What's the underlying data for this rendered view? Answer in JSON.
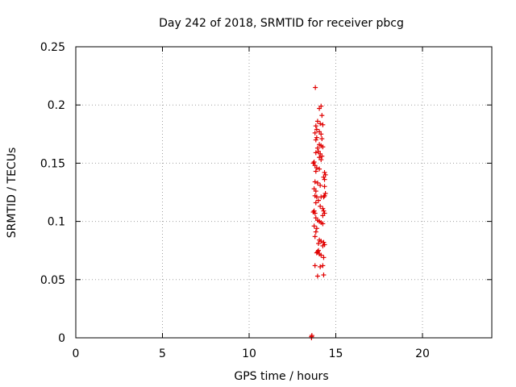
{
  "chart_data": {
    "type": "scatter",
    "title": "Day 242 of 2018, SRMTID for receiver pbcg",
    "xlabel": "GPS time / hours",
    "ylabel": "SRMTID / TECUs",
    "xlim": [
      0,
      24
    ],
    "ylim": [
      0,
      0.25
    ],
    "xticks": [
      0,
      5,
      10,
      15,
      20
    ],
    "xtick_labels": [
      "0",
      "5",
      "10",
      "15",
      "20"
    ],
    "yticks": [
      0,
      0.05,
      0.1,
      0.15,
      0.2,
      0.25
    ],
    "ytick_labels": [
      "0",
      "0.05",
      "0.1",
      "0.15",
      "0.2",
      "0.25"
    ],
    "grid": true,
    "marker": "plus",
    "color": "#e00000",
    "points": [
      [
        13.6,
        0.0
      ],
      [
        13.6,
        0.001
      ],
      [
        13.62,
        0.002
      ],
      [
        13.82,
        0.215
      ],
      [
        14.15,
        0.199
      ],
      [
        14.05,
        0.197
      ],
      [
        14.2,
        0.191
      ],
      [
        13.95,
        0.186
      ],
      [
        14.1,
        0.184
      ],
      [
        13.85,
        0.182
      ],
      [
        14.25,
        0.183
      ],
      [
        13.9,
        0.179
      ],
      [
        14.05,
        0.177
      ],
      [
        13.8,
        0.176
      ],
      [
        14.15,
        0.175
      ],
      [
        13.9,
        0.172
      ],
      [
        14.2,
        0.171
      ],
      [
        13.85,
        0.17
      ],
      [
        14.05,
        0.166
      ],
      [
        14.15,
        0.165
      ],
      [
        14.25,
        0.164
      ],
      [
        13.95,
        0.163
      ],
      [
        14.0,
        0.16
      ],
      [
        13.85,
        0.159
      ],
      [
        14.1,
        0.158
      ],
      [
        14.2,
        0.156
      ],
      [
        14.05,
        0.155
      ],
      [
        14.15,
        0.153
      ],
      [
        13.75,
        0.151
      ],
      [
        13.7,
        0.15
      ],
      [
        13.8,
        0.148
      ],
      [
        13.9,
        0.146
      ],
      [
        14.05,
        0.145
      ],
      [
        13.85,
        0.143
      ],
      [
        14.35,
        0.142
      ],
      [
        14.4,
        0.14
      ],
      [
        14.3,
        0.138
      ],
      [
        14.35,
        0.136
      ],
      [
        13.8,
        0.134
      ],
      [
        13.95,
        0.133
      ],
      [
        14.1,
        0.131
      ],
      [
        14.35,
        0.13
      ],
      [
        13.75,
        0.128
      ],
      [
        13.85,
        0.126
      ],
      [
        14.4,
        0.124
      ],
      [
        13.8,
        0.122
      ],
      [
        13.9,
        0.121
      ],
      [
        14.15,
        0.121
      ],
      [
        14.35,
        0.122
      ],
      [
        14.3,
        0.121
      ],
      [
        14.0,
        0.118
      ],
      [
        13.85,
        0.116
      ],
      [
        14.1,
        0.113
      ],
      [
        14.25,
        0.111
      ],
      [
        13.75,
        0.109
      ],
      [
        13.7,
        0.108
      ],
      [
        13.8,
        0.107
      ],
      [
        14.35,
        0.107
      ],
      [
        14.3,
        0.109
      ],
      [
        14.25,
        0.105
      ],
      [
        13.85,
        0.103
      ],
      [
        14.05,
        0.1
      ],
      [
        14.15,
        0.099
      ],
      [
        14.25,
        0.098
      ],
      [
        13.95,
        0.101
      ],
      [
        13.75,
        0.096
      ],
      [
        13.9,
        0.094
      ],
      [
        13.85,
        0.091
      ],
      [
        13.8,
        0.087
      ],
      [
        14.05,
        0.084
      ],
      [
        14.15,
        0.083
      ],
      [
        14.3,
        0.082
      ],
      [
        14.35,
        0.08
      ],
      [
        14.25,
        0.079
      ],
      [
        14.0,
        0.081
      ],
      [
        13.95,
        0.074
      ],
      [
        13.9,
        0.073
      ],
      [
        14.05,
        0.072
      ],
      [
        14.15,
        0.071
      ],
      [
        14.3,
        0.069
      ],
      [
        14.0,
        0.075
      ],
      [
        13.8,
        0.062
      ],
      [
        14.1,
        0.061
      ],
      [
        14.25,
        0.062
      ],
      [
        13.95,
        0.053
      ],
      [
        14.3,
        0.054
      ]
    ]
  }
}
